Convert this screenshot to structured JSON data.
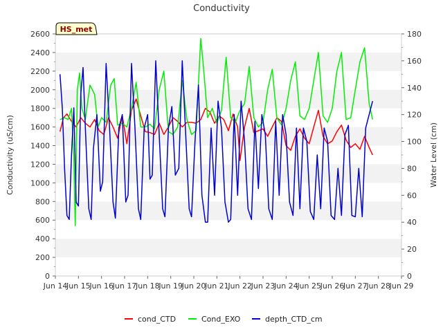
{
  "chart_data": {
    "type": "line",
    "title": "Conductivity",
    "badge": "HS_met",
    "ylabel": "Conductivity (uS/cm)",
    "y2label": "Water Level (cm)",
    "ylim": [
      0,
      2600
    ],
    "y2lim": [
      0,
      180
    ],
    "yticks": [
      0,
      200,
      400,
      600,
      800,
      1000,
      1200,
      1400,
      1600,
      1800,
      2000,
      2200,
      2400,
      2600
    ],
    "y2ticks": [
      0,
      20,
      40,
      60,
      80,
      100,
      120,
      140,
      160,
      180
    ],
    "xlim": [
      14,
      29
    ],
    "xticks": [
      {
        "value": 14,
        "label": "Jun 14"
      },
      {
        "value": 15,
        "label": "Jun 15"
      },
      {
        "value": 16,
        "label": "Jun 16"
      },
      {
        "value": 17,
        "label": "Jun 17"
      },
      {
        "value": 18,
        "label": "Jun 18"
      },
      {
        "value": 19,
        "label": "Jun 19"
      },
      {
        "value": 20,
        "label": "Jun 20"
      },
      {
        "value": 21,
        "label": "Jun 21"
      },
      {
        "value": 22,
        "label": "Jun 22"
      },
      {
        "value": 23,
        "label": "Jun 23"
      },
      {
        "value": 24,
        "label": "Jun 24"
      },
      {
        "value": 25,
        "label": "Jun 25"
      },
      {
        "value": 26,
        "label": "Jun 26"
      },
      {
        "value": 27,
        "label": "Jun 27"
      },
      {
        "value": 28,
        "label": "Jun 28"
      },
      {
        "value": 29,
        "label": "Jun 29"
      }
    ],
    "grid": "horizontal-bands",
    "legend_position": "bottom",
    "series": [
      {
        "name": "cond_CTD",
        "color": "#ff0000",
        "axis": "left",
        "points": [
          [
            14.2,
            1550
          ],
          [
            14.35,
            1700
          ],
          [
            14.5,
            1740
          ],
          [
            14.7,
            1660
          ],
          [
            14.9,
            1600
          ],
          [
            15.1,
            1700
          ],
          [
            15.3,
            1640
          ],
          [
            15.5,
            1600
          ],
          [
            15.7,
            1680
          ],
          [
            15.9,
            1560
          ],
          [
            16.1,
            1520
          ],
          [
            16.3,
            1700
          ],
          [
            16.5,
            1600
          ],
          [
            16.7,
            1480
          ],
          [
            16.9,
            1720
          ],
          [
            17.1,
            1420
          ],
          [
            17.3,
            1780
          ],
          [
            17.5,
            1900
          ],
          [
            17.7,
            1720
          ],
          [
            17.9,
            1550
          ],
          [
            18.1,
            1540
          ],
          [
            18.3,
            1520
          ],
          [
            18.5,
            1640
          ],
          [
            18.7,
            1520
          ],
          [
            18.9,
            1600
          ],
          [
            19.1,
            1700
          ],
          [
            19.3,
            1660
          ],
          [
            19.5,
            1600
          ],
          [
            19.7,
            1650
          ],
          [
            19.9,
            1650
          ],
          [
            20.1,
            1640
          ],
          [
            20.3,
            1680
          ],
          [
            20.5,
            1800
          ],
          [
            20.7,
            1760
          ],
          [
            20.9,
            1640
          ],
          [
            21.1,
            1720
          ],
          [
            21.3,
            1680
          ],
          [
            21.5,
            1560
          ],
          [
            21.7,
            1740
          ],
          [
            21.9,
            1600
          ],
          [
            22.0,
            1240
          ],
          [
            22.2,
            1600
          ],
          [
            22.4,
            1800
          ],
          [
            22.6,
            1540
          ],
          [
            22.8,
            1560
          ],
          [
            23.0,
            1580
          ],
          [
            23.2,
            1500
          ],
          [
            23.4,
            1600
          ],
          [
            23.6,
            1700
          ],
          [
            23.8,
            1660
          ],
          [
            24.0,
            1400
          ],
          [
            24.2,
            1350
          ],
          [
            24.4,
            1500
          ],
          [
            24.6,
            1580
          ],
          [
            24.8,
            1480
          ],
          [
            25.0,
            1420
          ],
          [
            25.2,
            1600
          ],
          [
            25.4,
            1780
          ],
          [
            25.6,
            1500
          ],
          [
            25.8,
            1420
          ],
          [
            26.0,
            1450
          ],
          [
            26.2,
            1550
          ],
          [
            26.4,
            1620
          ],
          [
            26.6,
            1460
          ],
          [
            26.8,
            1380
          ],
          [
            27.0,
            1420
          ],
          [
            27.2,
            1360
          ],
          [
            27.4,
            1500
          ],
          [
            27.6,
            1380
          ],
          [
            27.75,
            1300
          ]
        ]
      },
      {
        "name": "Cond_EXO",
        "color": "#00ee00",
        "axis": "left",
        "points": [
          [
            14.2,
            1680
          ],
          [
            14.4,
            1700
          ],
          [
            14.55,
            1680
          ],
          [
            14.7,
            1800
          ],
          [
            14.8,
            1250
          ],
          [
            14.86,
            540
          ],
          [
            14.95,
            2000
          ],
          [
            15.05,
            2180
          ],
          [
            15.15,
            1800
          ],
          [
            15.3,
            1680
          ],
          [
            15.5,
            2050
          ],
          [
            15.7,
            1950
          ],
          [
            15.85,
            1600
          ],
          [
            16.0,
            1700
          ],
          [
            16.2,
            1650
          ],
          [
            16.4,
            2050
          ],
          [
            16.55,
            2120
          ],
          [
            16.7,
            1620
          ],
          [
            16.9,
            1640
          ],
          [
            17.1,
            1600
          ],
          [
            17.3,
            1800
          ],
          [
            17.5,
            2080
          ],
          [
            17.7,
            1600
          ],
          [
            17.9,
            1600
          ],
          [
            18.1,
            1630
          ],
          [
            18.3,
            1580
          ],
          [
            18.5,
            2000
          ],
          [
            18.7,
            2200
          ],
          [
            18.9,
            1550
          ],
          [
            19.1,
            1520
          ],
          [
            19.3,
            1600
          ],
          [
            19.5,
            2100
          ],
          [
            19.7,
            1680
          ],
          [
            19.9,
            1520
          ],
          [
            20.1,
            1560
          ],
          [
            20.3,
            2550
          ],
          [
            20.4,
            2300
          ],
          [
            20.6,
            1700
          ],
          [
            20.8,
            1800
          ],
          [
            21.0,
            1640
          ],
          [
            21.2,
            1780
          ],
          [
            21.4,
            2350
          ],
          [
            21.6,
            1700
          ],
          [
            21.8,
            1650
          ],
          [
            22.0,
            1780
          ],
          [
            22.2,
            1850
          ],
          [
            22.4,
            2250
          ],
          [
            22.6,
            1700
          ],
          [
            22.8,
            1600
          ],
          [
            23.0,
            1650
          ],
          [
            23.2,
            2000
          ],
          [
            23.4,
            2220
          ],
          [
            23.6,
            1700
          ],
          [
            23.8,
            1620
          ],
          [
            24.0,
            1800
          ],
          [
            24.2,
            2100
          ],
          [
            24.4,
            2300
          ],
          [
            24.6,
            1720
          ],
          [
            24.8,
            1680
          ],
          [
            25.0,
            1800
          ],
          [
            25.2,
            2100
          ],
          [
            25.4,
            2400
          ],
          [
            25.6,
            1720
          ],
          [
            25.8,
            1650
          ],
          [
            26.0,
            1800
          ],
          [
            26.2,
            2200
          ],
          [
            26.4,
            2400
          ],
          [
            26.6,
            1680
          ],
          [
            26.8,
            1700
          ],
          [
            27.0,
            2000
          ],
          [
            27.2,
            2300
          ],
          [
            27.4,
            2450
          ],
          [
            27.6,
            1850
          ],
          [
            27.75,
            1680
          ]
        ]
      },
      {
        "name": "depth_CTD_cm",
        "color": "#0000cc",
        "axis": "right",
        "points": [
          [
            14.2,
            150
          ],
          [
            14.3,
            125
          ],
          [
            14.4,
            80
          ],
          [
            14.5,
            45
          ],
          [
            14.6,
            42
          ],
          [
            14.7,
            90
          ],
          [
            14.8,
            125
          ],
          [
            14.9,
            55
          ],
          [
            15.0,
            52
          ],
          [
            15.1,
            135
          ],
          [
            15.2,
            155
          ],
          [
            15.3,
            110
          ],
          [
            15.45,
            50
          ],
          [
            15.55,
            42
          ],
          [
            15.65,
            95
          ],
          [
            15.8,
            120
          ],
          [
            15.95,
            63
          ],
          [
            16.05,
            70
          ],
          [
            16.2,
            158
          ],
          [
            16.35,
            110
          ],
          [
            16.5,
            55
          ],
          [
            16.6,
            43
          ],
          [
            16.75,
            110
          ],
          [
            16.9,
            120
          ],
          [
            17.05,
            55
          ],
          [
            17.15,
            60
          ],
          [
            17.3,
            158
          ],
          [
            17.45,
            110
          ],
          [
            17.6,
            50
          ],
          [
            17.7,
            42
          ],
          [
            17.85,
            110
          ],
          [
            18.0,
            120
          ],
          [
            18.1,
            72
          ],
          [
            18.2,
            75
          ],
          [
            18.35,
            160
          ],
          [
            18.5,
            105
          ],
          [
            18.65,
            50
          ],
          [
            18.75,
            44
          ],
          [
            18.9,
            110
          ],
          [
            19.05,
            126
          ],
          [
            19.2,
            75
          ],
          [
            19.35,
            80
          ],
          [
            19.5,
            160
          ],
          [
            19.65,
            105
          ],
          [
            19.8,
            50
          ],
          [
            19.9,
            44
          ],
          [
            20.05,
            100
          ],
          [
            20.2,
            142
          ],
          [
            20.35,
            60
          ],
          [
            20.5,
            40
          ],
          [
            20.6,
            40
          ],
          [
            20.75,
            110
          ],
          [
            20.9,
            60
          ],
          [
            21.05,
            130
          ],
          [
            21.2,
            110
          ],
          [
            21.35,
            55
          ],
          [
            21.5,
            40
          ],
          [
            21.6,
            42
          ],
          [
            21.75,
            120
          ],
          [
            21.9,
            60
          ],
          [
            22.05,
            130
          ],
          [
            22.2,
            100
          ],
          [
            22.35,
            50
          ],
          [
            22.5,
            42
          ],
          [
            22.65,
            115
          ],
          [
            22.8,
            65
          ],
          [
            22.95,
            120
          ],
          [
            23.1,
            105
          ],
          [
            23.25,
            50
          ],
          [
            23.4,
            42
          ],
          [
            23.55,
            115
          ],
          [
            23.7,
            60
          ],
          [
            23.85,
            120
          ],
          [
            24.0,
            105
          ],
          [
            24.15,
            55
          ],
          [
            24.3,
            45
          ],
          [
            24.45,
            110
          ],
          [
            24.6,
            50
          ],
          [
            24.75,
            110
          ],
          [
            24.9,
            100
          ],
          [
            25.05,
            48
          ],
          [
            25.2,
            42
          ],
          [
            25.35,
            90
          ],
          [
            25.5,
            50
          ],
          [
            25.65,
            110
          ],
          [
            25.8,
            100
          ],
          [
            25.95,
            45
          ],
          [
            26.1,
            42
          ],
          [
            26.25,
            80
          ],
          [
            26.4,
            45
          ],
          [
            26.55,
            105
          ],
          [
            26.7,
            112
          ],
          [
            26.85,
            45
          ],
          [
            27.0,
            44
          ],
          [
            27.15,
            80
          ],
          [
            27.3,
            44
          ],
          [
            27.45,
            110
          ],
          [
            27.6,
            120
          ],
          [
            27.75,
            130
          ]
        ]
      }
    ]
  }
}
